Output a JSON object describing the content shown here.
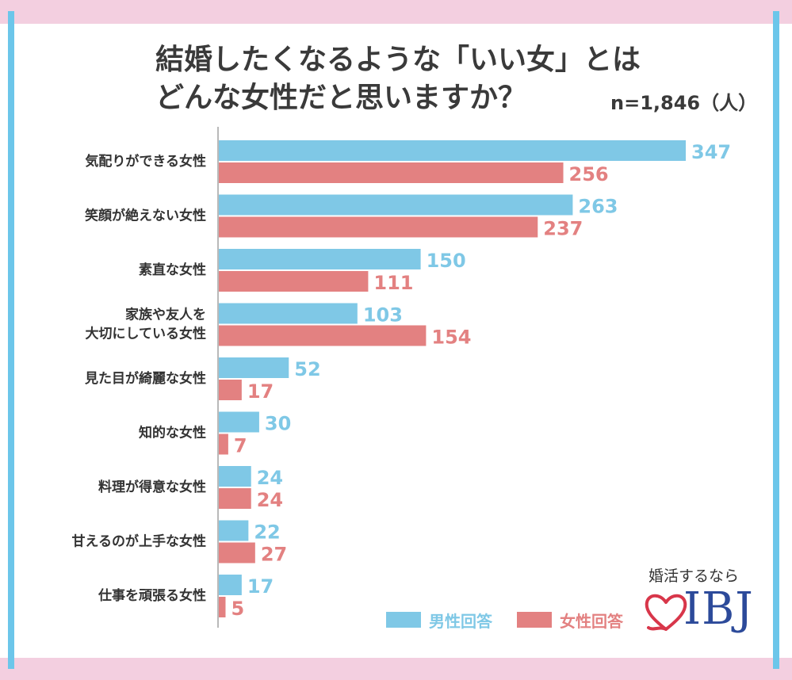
{
  "title_line1": "結婚したくなるような「いい女」とは",
  "title_line2": "どんな女性だと思いますか？",
  "sample_note": "n=1,846（人）",
  "legend": {
    "male_label": "男性回答",
    "female_label": "女性回答"
  },
  "colors": {
    "male": "#7fc8e6",
    "female": "#e38181",
    "frame_pink": "#f3cfe0",
    "frame_blue": "#6cc6ea",
    "logo_red": "#d8364a",
    "logo_blue": "#2c4a9a"
  },
  "brand": {
    "tagline": "婚活するなら",
    "logo_text": "IBJ",
    "logo_icon": "heart-outline-icon"
  },
  "chart_data": {
    "type": "bar",
    "orientation": "horizontal",
    "categories": [
      "気配りができる女性",
      "笑顔が絶えない女性",
      "素直な女性",
      "家族や友人を\n大切にしている女性",
      "見た目が綺麗な女性",
      "知的な女性",
      "料理が得意な女性",
      "甘えるのが上手な女性",
      "仕事を頑張る女性"
    ],
    "series": [
      {
        "name": "男性回答",
        "values": [
          347,
          263,
          150,
          103,
          52,
          30,
          24,
          22,
          17
        ]
      },
      {
        "name": "女性回答",
        "values": [
          256,
          237,
          111,
          154,
          17,
          7,
          24,
          27,
          5
        ]
      }
    ],
    "xlim": [
      0,
      347
    ],
    "grid": false,
    "legend_position": "bottom-right"
  }
}
